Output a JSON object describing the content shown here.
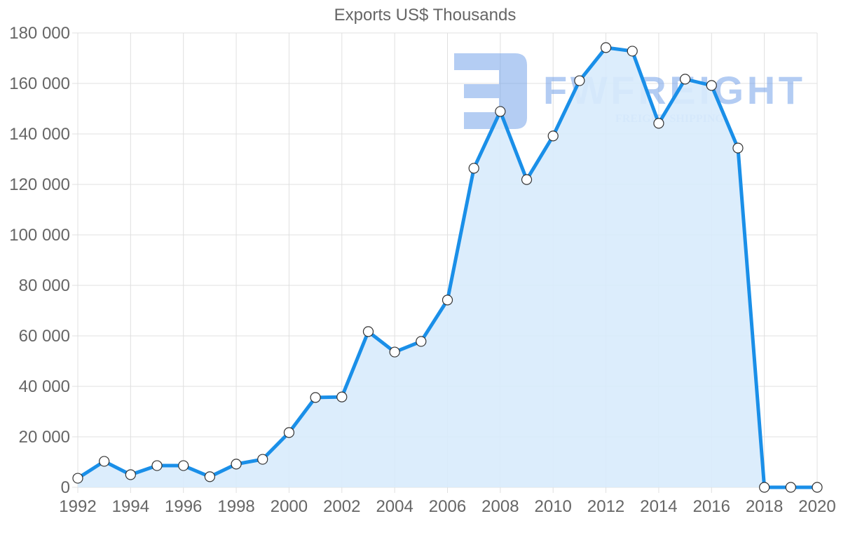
{
  "chart_data": {
    "type": "area",
    "title": "Exports US$ Thousands",
    "xlabel": "",
    "ylabel": "",
    "x": [
      1992,
      1993,
      1994,
      1995,
      1996,
      1997,
      1998,
      1999,
      2000,
      2001,
      2002,
      2003,
      2004,
      2005,
      2006,
      2007,
      2008,
      2009,
      2010,
      2011,
      2012,
      2013,
      2014,
      2015,
      2016,
      2017,
      2018,
      2019,
      2020
    ],
    "series": [
      {
        "name": "Exports US$ Thousands",
        "values": [
          3600,
          10300,
          5000,
          8600,
          8600,
          4200,
          9200,
          11100,
          21700,
          35600,
          35800,
          61700,
          53600,
          57800,
          74200,
          126400,
          148900,
          121900,
          139200,
          161100,
          174200,
          172800,
          144200,
          161700,
          159200,
          134400,
          0,
          0,
          0
        ]
      }
    ],
    "ylim": [
      0,
      180000
    ],
    "y_ticks": [
      "0",
      "20 000",
      "40 000",
      "60 000",
      "80 000",
      "100 000",
      "120 000",
      "140 000",
      "160 000",
      "180 000"
    ],
    "x_ticks": [
      "1992",
      "1994",
      "1996",
      "1998",
      "2000",
      "2002",
      "2004",
      "2006",
      "2008",
      "2010",
      "2012",
      "2014",
      "2016",
      "2018",
      "2020"
    ],
    "grid": true,
    "legend": "none",
    "colors": {
      "line": "#1a8fe8",
      "fill": "#d8ebfc",
      "grid": "#e0e0e0",
      "text": "#666666"
    }
  },
  "watermark": {
    "brand": "FWFREIGHT",
    "tagline": "FREIGHT SHIPPING"
  }
}
